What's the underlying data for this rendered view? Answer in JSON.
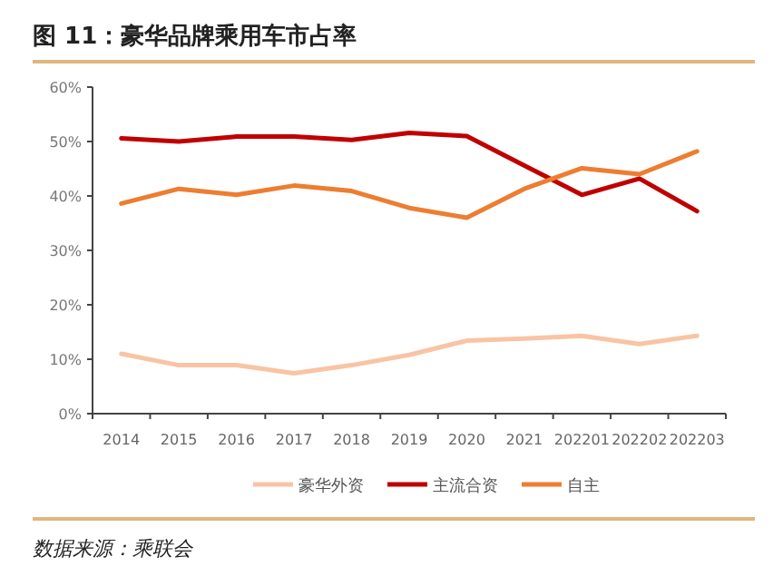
{
  "chart_data": {
    "type": "line",
    "title": "图 11：豪华品牌乘用车市占率",
    "categories": [
      "2014",
      "2015",
      "2016",
      "2017",
      "2018",
      "2019",
      "2020",
      "2021",
      "202201",
      "202202",
      "202203"
    ],
    "series": [
      {
        "name": "豪华外资",
        "color": "#f8c4a4",
        "values": [
          11.0,
          8.9,
          8.9,
          7.4,
          8.9,
          10.8,
          13.4,
          13.8,
          14.3,
          12.8,
          14.3
        ]
      },
      {
        "name": "主流合资",
        "color": "#c00000",
        "values": [
          50.6,
          50.0,
          50.9,
          50.9,
          50.3,
          51.6,
          51.0,
          45.6,
          40.2,
          43.2,
          37.2
        ]
      },
      {
        "name": "自主",
        "color": "#ed7d31",
        "values": [
          38.6,
          41.3,
          40.2,
          41.9,
          40.9,
          37.8,
          36.0,
          41.3,
          45.1,
          44.0,
          48.2
        ]
      }
    ],
    "ylim": [
      0,
      60
    ],
    "yticks": [
      {
        "value": 0,
        "label": "0%"
      },
      {
        "value": 10,
        "label": "10%"
      },
      {
        "value": 20,
        "label": "20%"
      },
      {
        "value": 30,
        "label": "30%"
      },
      {
        "value": 40,
        "label": "40%"
      },
      {
        "value": 50,
        "label": "50%"
      },
      {
        "value": 60,
        "label": "60%"
      }
    ],
    "legend": "bottom",
    "annotations": [
      "数据来源：乘联会"
    ]
  }
}
